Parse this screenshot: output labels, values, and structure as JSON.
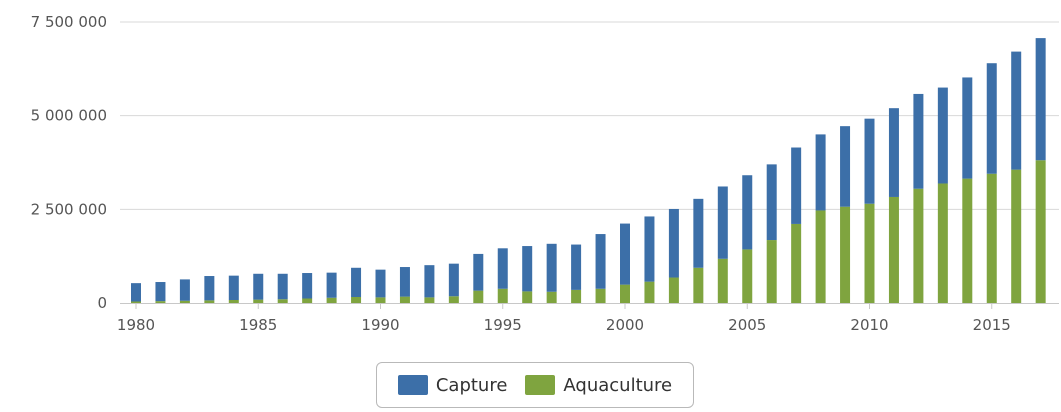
{
  "chart_data": {
    "type": "bar",
    "stacked": true,
    "categories": [
      "1980",
      "1981",
      "1982",
      "1983",
      "1984",
      "1985",
      "1986",
      "1987",
      "1988",
      "1989",
      "1990",
      "1991",
      "1992",
      "1993",
      "1994",
      "1995",
      "1996",
      "1997",
      "1998",
      "1999",
      "2000",
      "2001",
      "2002",
      "2003",
      "2004",
      "2005",
      "2006",
      "2007",
      "2008",
      "2009",
      "2010",
      "2011",
      "2012",
      "2013",
      "2014",
      "2015",
      "2016",
      "2017"
    ],
    "series": [
      {
        "name": "Aquaculture",
        "color": "#7fa43f",
        "values": [
          40000,
          50000,
          60000,
          70000,
          80000,
          90000,
          100000,
          120000,
          140000,
          160000,
          150000,
          170000,
          150000,
          180000,
          330000,
          380000,
          310000,
          300000,
          350000,
          380000,
          490000,
          570000,
          680000,
          940000,
          1180000,
          1430000,
          1680000,
          2110000,
          2470000,
          2570000,
          2650000,
          2830000,
          3050000,
          3190000,
          3320000,
          3450000,
          3560000,
          3810000
        ]
      },
      {
        "name": "Capture",
        "color": "#3c6fa8",
        "values": [
          490000,
          510000,
          570000,
          650000,
          650000,
          690000,
          680000,
          680000,
          670000,
          780000,
          740000,
          790000,
          860000,
          870000,
          980000,
          1080000,
          1210000,
          1280000,
          1210000,
          1460000,
          1630000,
          1740000,
          1830000,
          1840000,
          1930000,
          1980000,
          2020000,
          2040000,
          2030000,
          2150000,
          2270000,
          2370000,
          2530000,
          2560000,
          2700000,
          2950000,
          3150000,
          3260000
        ]
      }
    ],
    "ylim": [
      0,
      7500000
    ],
    "yticks": [
      0,
      2500000,
      5000000,
      7500000
    ],
    "ytick_labels": [
      "0",
      "2 500 000",
      "5 000 000",
      "7 500 000"
    ],
    "xtick_labels": [
      "1980",
      "1985",
      "1990",
      "1995",
      "2000",
      "2005",
      "2010",
      "2015"
    ],
    "grid": true,
    "legend_position": "bottom-center",
    "legend_order": [
      "Capture",
      "Aquaculture"
    ]
  }
}
